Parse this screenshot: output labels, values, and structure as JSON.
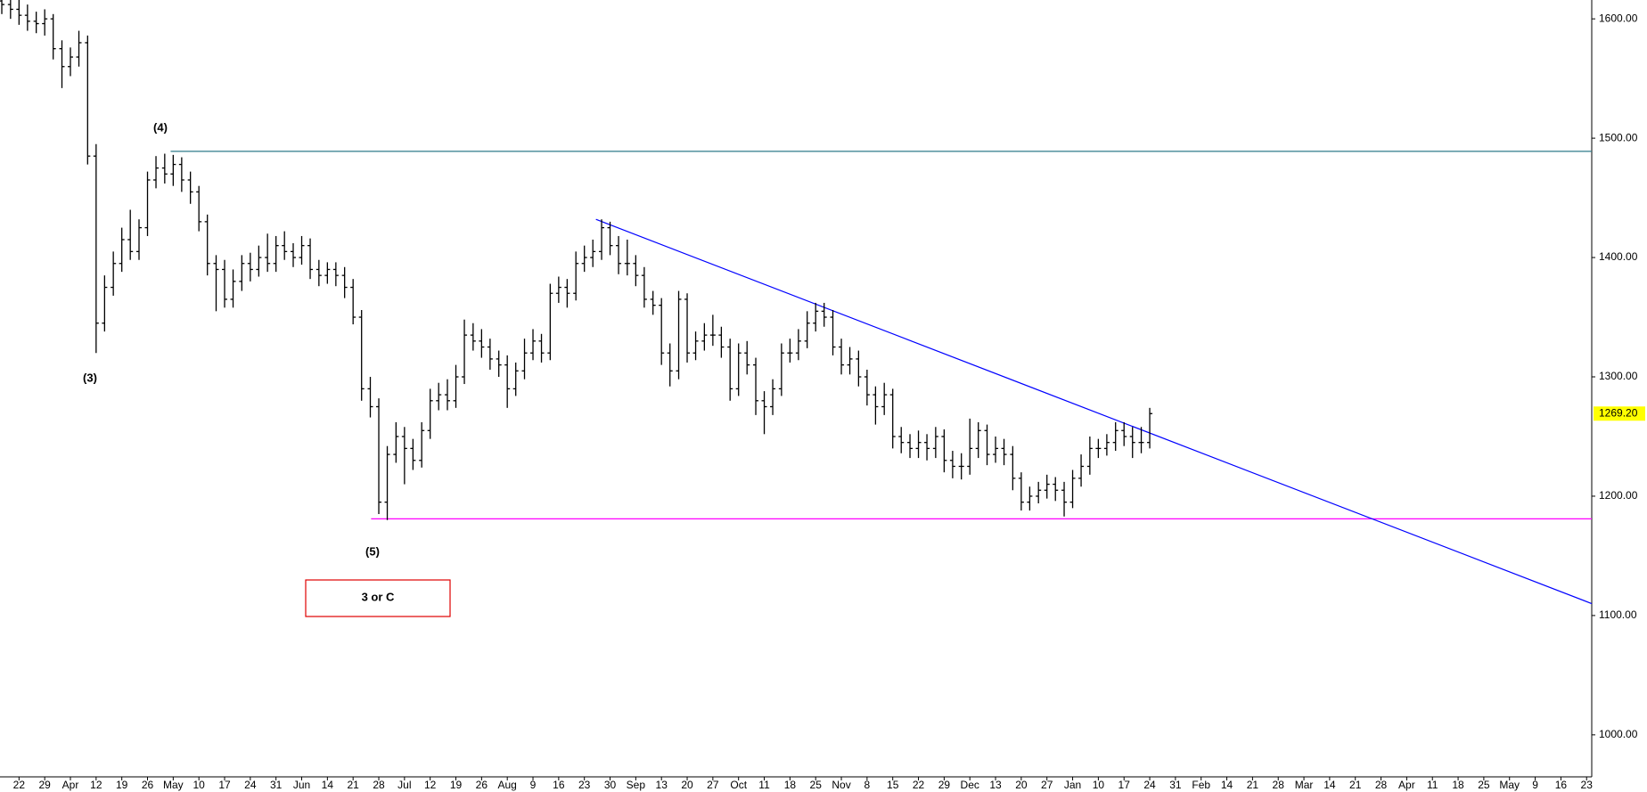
{
  "chart_data": {
    "type": "ohlc",
    "color": "#000000",
    "x": [
      -0.67,
      -0.33,
      0,
      0.33,
      0.67,
      1,
      1.33,
      1.67,
      2,
      2.33,
      2.67,
      3,
      3.33,
      3.67,
      4,
      4.33,
      4.67,
      5,
      5.33,
      5.67,
      6,
      6.33,
      6.67,
      7,
      7.33,
      7.67,
      8,
      8.33,
      8.67,
      9,
      9.33,
      9.67,
      10,
      10.33,
      10.67,
      11,
      11.33,
      11.67,
      12,
      12.33,
      12.67,
      13,
      13.33,
      13.67,
      14,
      14.33,
      14.67,
      15,
      15.33,
      15.67,
      16,
      16.33,
      16.67,
      17,
      17.33,
      17.67,
      18,
      18.33,
      18.67,
      19,
      19.33,
      19.67,
      20,
      20.33,
      20.67,
      21,
      21.33,
      21.67,
      22,
      22.33,
      22.67,
      23,
      23.33,
      23.67,
      24,
      24.33,
      24.67,
      25,
      25.33,
      25.67,
      26,
      26.33,
      26.67,
      27,
      27.33,
      27.67,
      28,
      28.33,
      28.67,
      29,
      29.33,
      29.67,
      30,
      30.33,
      30.67,
      31,
      31.33,
      31.67,
      32,
      32.33,
      32.67,
      33,
      33.33,
      33.67,
      34,
      34.33,
      34.67,
      35,
      35.33,
      35.67,
      36,
      36.33,
      36.67,
      37,
      37.33,
      37.67,
      38,
      38.33,
      38.67,
      39,
      39.33,
      39.67,
      40,
      40.33,
      40.67,
      41,
      41.33,
      41.67,
      42,
      42.33,
      42.67,
      43,
      43.33,
      43.67,
      44
    ],
    "open": [
      1615,
      1612,
      1608,
      1603,
      1598,
      1596,
      1600,
      1575,
      1560,
      1568,
      1580,
      1485,
      1345,
      1375,
      1395,
      1415,
      1405,
      1425,
      1465,
      1475,
      1470,
      1478,
      1465,
      1455,
      1430,
      1395,
      1390,
      1365,
      1380,
      1395,
      1390,
      1400,
      1395,
      1410,
      1405,
      1400,
      1410,
      1390,
      1385,
      1390,
      1385,
      1375,
      1350,
      1290,
      1275,
      1195,
      1235,
      1250,
      1240,
      1230,
      1255,
      1280,
      1285,
      1280,
      1300,
      1335,
      1330,
      1325,
      1315,
      1310,
      1290,
      1305,
      1320,
      1330,
      1320,
      1370,
      1375,
      1370,
      1395,
      1400,
      1405,
      1425,
      1410,
      1395,
      1395,
      1385,
      1365,
      1360,
      1320,
      1305,
      1365,
      1320,
      1330,
      1335,
      1335,
      1325,
      1290,
      1320,
      1310,
      1280,
      1275,
      1290,
      1320,
      1320,
      1330,
      1345,
      1355,
      1350,
      1325,
      1310,
      1315,
      1300,
      1285,
      1275,
      1285,
      1250,
      1245,
      1240,
      1245,
      1240,
      1250,
      1230,
      1225,
      1225,
      1240,
      1255,
      1235,
      1240,
      1235,
      1215,
      1195,
      1200,
      1205,
      1210,
      1205,
      1195,
      1215,
      1225,
      1240,
      1240,
      1245,
      1255,
      1250,
      1245,
      1245
    ],
    "high": [
      1622,
      1620,
      1616,
      1612,
      1606,
      1608,
      1604,
      1582,
      1576,
      1590,
      1586,
      1495,
      1385,
      1405,
      1425,
      1440,
      1432,
      1472,
      1485,
      1487,
      1486,
      1484,
      1472,
      1460,
      1436,
      1402,
      1398,
      1390,
      1402,
      1404,
      1410,
      1420,
      1418,
      1422,
      1412,
      1418,
      1416,
      1398,
      1396,
      1396,
      1392,
      1382,
      1356,
      1300,
      1282,
      1242,
      1262,
      1258,
      1248,
      1262,
      1290,
      1295,
      1298,
      1310,
      1348,
      1345,
      1340,
      1332,
      1322,
      1318,
      1312,
      1332,
      1340,
      1336,
      1378,
      1384,
      1382,
      1405,
      1410,
      1415,
      1432,
      1430,
      1418,
      1415,
      1402,
      1392,
      1372,
      1366,
      1328,
      1372,
      1370,
      1338,
      1345,
      1352,
      1342,
      1332,
      1328,
      1330,
      1316,
      1288,
      1298,
      1328,
      1332,
      1340,
      1355,
      1362,
      1362,
      1356,
      1332,
      1325,
      1322,
      1306,
      1292,
      1295,
      1290,
      1258,
      1252,
      1255,
      1252,
      1258,
      1256,
      1238,
      1236,
      1265,
      1262,
      1260,
      1250,
      1248,
      1242,
      1220,
      1208,
      1212,
      1218,
      1216,
      1212,
      1222,
      1235,
      1250,
      1248,
      1252,
      1262,
      1262,
      1258,
      1258,
      1274
    ],
    "low": [
      1604,
      1600,
      1595,
      1590,
      1588,
      1586,
      1566,
      1542,
      1552,
      1560,
      1478,
      1320,
      1338,
      1368,
      1388,
      1398,
      1398,
      1418,
      1458,
      1462,
      1460,
      1455,
      1445,
      1422,
      1385,
      1355,
      1358,
      1358,
      1372,
      1380,
      1384,
      1388,
      1388,
      1398,
      1392,
      1394,
      1382,
      1376,
      1378,
      1376,
      1366,
      1344,
      1280,
      1266,
      1185,
      1180,
      1228,
      1210,
      1222,
      1224,
      1248,
      1272,
      1272,
      1274,
      1294,
      1322,
      1316,
      1306,
      1300,
      1274,
      1284,
      1298,
      1314,
      1312,
      1314,
      1362,
      1358,
      1364,
      1388,
      1392,
      1398,
      1402,
      1386,
      1385,
      1376,
      1358,
      1352,
      1310,
      1292,
      1298,
      1312,
      1314,
      1322,
      1326,
      1316,
      1280,
      1284,
      1302,
      1268,
      1252,
      1268,
      1284,
      1312,
      1314,
      1324,
      1338,
      1342,
      1318,
      1302,
      1302,
      1292,
      1276,
      1260,
      1268,
      1240,
      1236,
      1232,
      1232,
      1230,
      1232,
      1220,
      1215,
      1214,
      1218,
      1232,
      1226,
      1228,
      1226,
      1205,
      1188,
      1188,
      1194,
      1198,
      1196,
      1183,
      1190,
      1208,
      1218,
      1232,
      1234,
      1238,
      1242,
      1232,
      1236,
      1240
    ],
    "close": [
      1612,
      1608,
      1603,
      1598,
      1596,
      1600,
      1575,
      1560,
      1568,
      1580,
      1485,
      1345,
      1375,
      1395,
      1415,
      1405,
      1425,
      1465,
      1475,
      1470,
      1478,
      1465,
      1455,
      1430,
      1395,
      1390,
      1365,
      1380,
      1395,
      1390,
      1400,
      1395,
      1410,
      1405,
      1400,
      1410,
      1390,
      1385,
      1390,
      1385,
      1375,
      1350,
      1290,
      1275,
      1195,
      1235,
      1250,
      1240,
      1230,
      1255,
      1280,
      1285,
      1280,
      1300,
      1335,
      1330,
      1325,
      1315,
      1310,
      1290,
      1305,
      1320,
      1330,
      1320,
      1370,
      1375,
      1370,
      1395,
      1400,
      1405,
      1425,
      1410,
      1395,
      1395,
      1385,
      1365,
      1360,
      1320,
      1305,
      1365,
      1320,
      1330,
      1335,
      1335,
      1325,
      1290,
      1320,
      1310,
      1280,
      1275,
      1290,
      1320,
      1320,
      1330,
      1345,
      1355,
      1350,
      1325,
      1310,
      1315,
      1300,
      1285,
      1275,
      1285,
      1250,
      1245,
      1240,
      1245,
      1240,
      1250,
      1230,
      1225,
      1225,
      1240,
      1255,
      1235,
      1240,
      1235,
      1215,
      1195,
      1200,
      1205,
      1210,
      1205,
      1195,
      1215,
      1225,
      1240,
      1240,
      1245,
      1255,
      1250,
      1245,
      1245,
      1269.2
    ],
    "xlim": [
      -0.74,
      61.2
    ],
    "xticks": [
      {
        "value": 0,
        "label": "22"
      },
      {
        "value": 1,
        "label": "29"
      },
      {
        "value": 2,
        "label": "Apr"
      },
      {
        "value": 3,
        "label": "12"
      },
      {
        "value": 4,
        "label": "19"
      },
      {
        "value": 5,
        "label": "26"
      },
      {
        "value": 6,
        "label": "May"
      },
      {
        "value": 7,
        "label": "10"
      },
      {
        "value": 8,
        "label": "17"
      },
      {
        "value": 9,
        "label": "24"
      },
      {
        "value": 10,
        "label": "31"
      },
      {
        "value": 11,
        "label": "Jun"
      },
      {
        "value": 12,
        "label": "14"
      },
      {
        "value": 13,
        "label": "21"
      },
      {
        "value": 14,
        "label": "28"
      },
      {
        "value": 15,
        "label": "Jul"
      },
      {
        "value": 16,
        "label": "12"
      },
      {
        "value": 17,
        "label": "19"
      },
      {
        "value": 18,
        "label": "26"
      },
      {
        "value": 19,
        "label": "Aug"
      },
      {
        "value": 20,
        "label": "9"
      },
      {
        "value": 21,
        "label": "16"
      },
      {
        "value": 22,
        "label": "23"
      },
      {
        "value": 23,
        "label": "30"
      },
      {
        "value": 24,
        "label": "Sep"
      },
      {
        "value": 25,
        "label": "13"
      },
      {
        "value": 26,
        "label": "20"
      },
      {
        "value": 27,
        "label": "27"
      },
      {
        "value": 28,
        "label": "Oct"
      },
      {
        "value": 29,
        "label": "11"
      },
      {
        "value": 30,
        "label": "18"
      },
      {
        "value": 31,
        "label": "25"
      },
      {
        "value": 32,
        "label": "Nov"
      },
      {
        "value": 33,
        "label": "8"
      },
      {
        "value": 34,
        "label": "15"
      },
      {
        "value": 35,
        "label": "22"
      },
      {
        "value": 36,
        "label": "29"
      },
      {
        "value": 37,
        "label": "Dec"
      },
      {
        "value": 38,
        "label": "13"
      },
      {
        "value": 39,
        "label": "20"
      },
      {
        "value": 40,
        "label": "27"
      },
      {
        "value": 41,
        "label": "Jan"
      },
      {
        "value": 42,
        "label": "10"
      },
      {
        "value": 43,
        "label": "17"
      },
      {
        "value": 44,
        "label": "24"
      },
      {
        "value": 45,
        "label": "31"
      },
      {
        "value": 46,
        "label": "Feb"
      },
      {
        "value": 47,
        "label": "14"
      },
      {
        "value": 48,
        "label": "21"
      },
      {
        "value": 49,
        "label": "28"
      },
      {
        "value": 50,
        "label": "Mar"
      },
      {
        "value": 51,
        "label": "14"
      },
      {
        "value": 52,
        "label": "21"
      },
      {
        "value": 53,
        "label": "28"
      },
      {
        "value": 54,
        "label": "Apr"
      },
      {
        "value": 55,
        "label": "11"
      },
      {
        "value": 56,
        "label": "18"
      },
      {
        "value": 57,
        "label": "25"
      },
      {
        "value": 58,
        "label": "May"
      },
      {
        "value": 59,
        "label": "9"
      },
      {
        "value": 60,
        "label": "16"
      },
      {
        "value": 61,
        "label": "23"
      }
    ],
    "ylim": [
      964.8,
      1615.8
    ],
    "yticks": [
      {
        "value": 1000,
        "label": "1000.00"
      },
      {
        "value": 1100,
        "label": "1100.00"
      },
      {
        "value": 1200,
        "label": "1200.00"
      },
      {
        "value": 1300,
        "label": "1300.00"
      },
      {
        "value": 1400,
        "label": "1400.00"
      },
      {
        "value": 1500,
        "label": "1500.00"
      },
      {
        "value": 1600,
        "label": "1600.00"
      }
    ],
    "last_price": {
      "value": 1269.2,
      "label": "1269.20",
      "color": "#ffff00"
    },
    "hlines": [
      {
        "value": 1489,
        "start": 5.9,
        "color": "#2e7a8a"
      },
      {
        "value": 1181,
        "start": 13.7,
        "color": "#ff00ff"
      }
    ],
    "trendline": {
      "x": [
        22.45,
        61.2
      ],
      "y": [
        1432,
        1110
      ],
      "color": "#0000ff"
    },
    "annotations": [
      "(4)",
      "(3)",
      "(5)"
    ],
    "box_label": "3 or C",
    "box_color": "#e00000"
  }
}
